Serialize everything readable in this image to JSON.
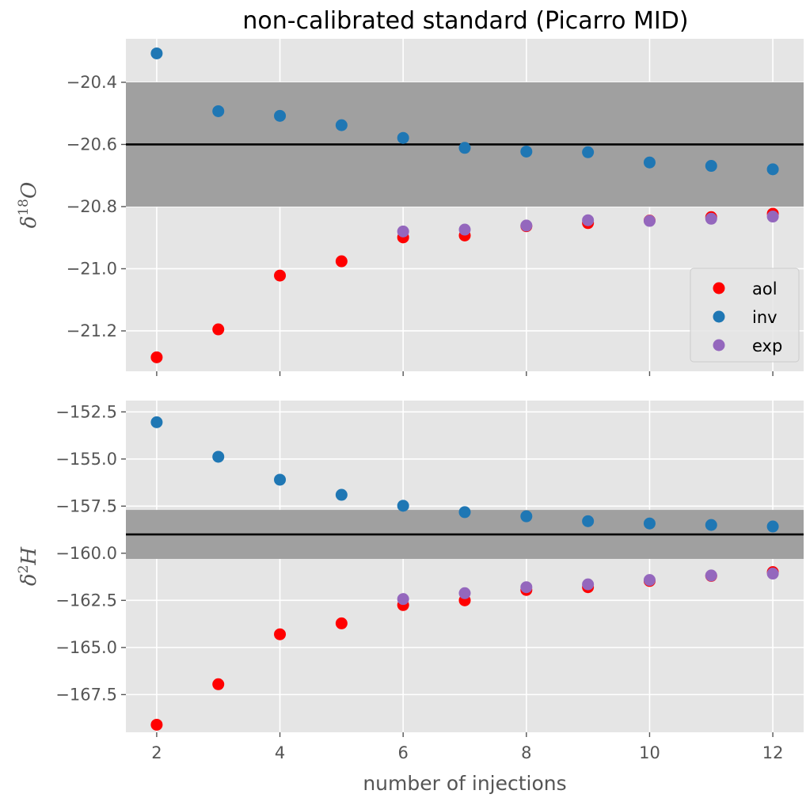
{
  "figure_title": "non-calibrated standard (Picarro MID)",
  "colors": {
    "aol": "#ff0000",
    "inv": "#1f77b4",
    "exp": "#9467bd",
    "panel_bg": "#e5e5e5",
    "band": "#a0a0a0",
    "grid": "#ffffff",
    "ref_line": "#000000"
  },
  "chart_data": [
    {
      "type": "scatter",
      "title": "non-calibrated standard (Picarro MID)",
      "ylabel_parts": {
        "greek": "δ",
        "sup": "18",
        "letter": "O"
      },
      "xlabel": "",
      "xlim": [
        1.5,
        12.5
      ],
      "ylim": [
        -21.33,
        -20.26
      ],
      "xticks": [
        2,
        4,
        6,
        8,
        10,
        12
      ],
      "xtick_labels": [
        "",
        "",
        "",
        "",
        "",
        ""
      ],
      "yticks": [
        -20.4,
        -20.6,
        -20.8,
        -21.0,
        -21.2
      ],
      "ytick_labels": [
        "−20.4",
        "−20.6",
        "−20.8",
        "−21.0",
        "−21.2"
      ],
      "grid": true,
      "band": [
        -20.8,
        -20.4
      ],
      "reference_line": -20.6,
      "legend": {
        "placement": "center-right",
        "entries": [
          "aol",
          "inv",
          "exp"
        ]
      },
      "series": [
        {
          "name": "aol",
          "x": [
            2,
            3,
            4,
            5,
            6,
            7,
            8,
            9,
            10,
            11,
            12
          ],
          "y": [
            -21.285,
            -21.195,
            -21.022,
            -20.976,
            -20.899,
            -20.893,
            -20.863,
            -20.853,
            -20.845,
            -20.834,
            -20.823
          ]
        },
        {
          "name": "inv",
          "x": [
            2,
            3,
            4,
            5,
            6,
            7,
            8,
            9,
            10,
            11,
            12
          ],
          "y": [
            -20.307,
            -20.493,
            -20.508,
            -20.538,
            -20.579,
            -20.611,
            -20.623,
            -20.625,
            -20.658,
            -20.669,
            -20.68
          ]
        },
        {
          "name": "exp",
          "x": [
            6,
            7,
            8,
            9,
            10,
            11,
            12
          ],
          "y": [
            -20.88,
            -20.874,
            -20.861,
            -20.844,
            -20.846,
            -20.839,
            -20.832
          ]
        }
      ]
    },
    {
      "type": "scatter",
      "ylabel_parts": {
        "greek": "δ",
        "sup": "2",
        "letter": "H"
      },
      "xlabel": "number of injections",
      "xlim": [
        1.5,
        12.5
      ],
      "ylim": [
        -169.5,
        -151.9
      ],
      "xticks": [
        2,
        4,
        6,
        8,
        10,
        12
      ],
      "xtick_labels": [
        "2",
        "4",
        "6",
        "8",
        "10",
        "12"
      ],
      "yticks": [
        -152.5,
        -155.0,
        -157.5,
        -160.0,
        -162.5,
        -165.0,
        -167.5
      ],
      "ytick_labels": [
        "−152.5",
        "−155.0",
        "−157.5",
        "−160.0",
        "−162.5",
        "−165.0",
        "−167.5"
      ],
      "grid": true,
      "band": [
        -160.3,
        -157.7
      ],
      "reference_line": -159.0,
      "series": [
        {
          "name": "aol",
          "x": [
            2,
            3,
            4,
            5,
            6,
            7,
            8,
            9,
            10,
            11,
            12
          ],
          "y": [
            -169.1,
            -166.95,
            -164.3,
            -163.72,
            -162.75,
            -162.5,
            -161.95,
            -161.8,
            -161.47,
            -161.2,
            -161.0
          ]
        },
        {
          "name": "inv",
          "x": [
            2,
            3,
            4,
            5,
            6,
            7,
            8,
            9,
            10,
            11,
            12
          ],
          "y": [
            -153.05,
            -154.88,
            -156.1,
            -156.9,
            -157.48,
            -157.82,
            -158.04,
            -158.3,
            -158.42,
            -158.5,
            -158.58
          ]
        },
        {
          "name": "exp",
          "x": [
            6,
            7,
            8,
            9,
            10,
            11,
            12
          ],
          "y": [
            -162.43,
            -162.12,
            -161.8,
            -161.65,
            -161.42,
            -161.18,
            -161.08
          ]
        }
      ]
    }
  ]
}
